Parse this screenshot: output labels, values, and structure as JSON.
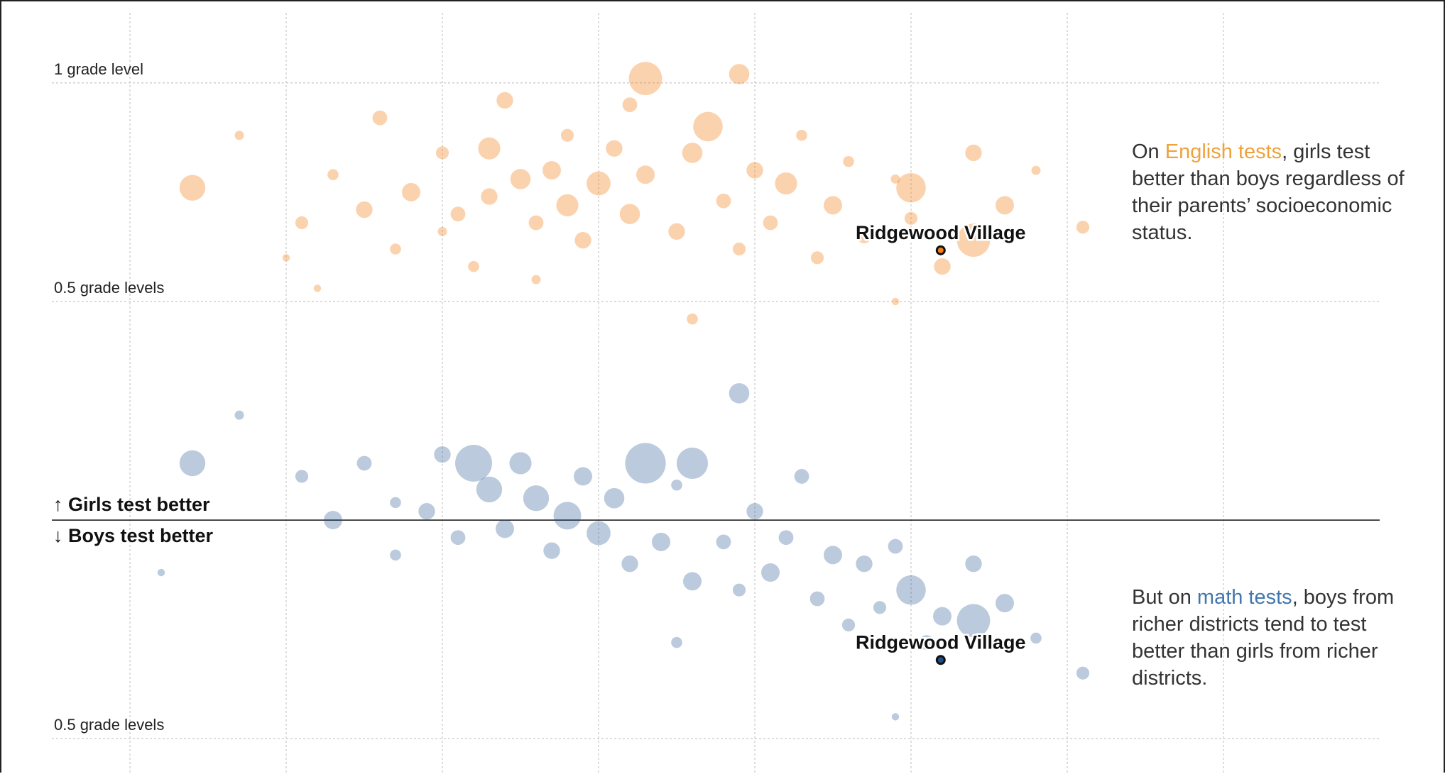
{
  "chart_data": {
    "type": "scatter",
    "xlim": [
      -3.5,
      5
    ],
    "xticks": [
      -3,
      -2,
      -1,
      0,
      1,
      2,
      3,
      4
    ],
    "ylim": [
      -0.55,
      1.05
    ],
    "yticks": [
      {
        "value": 1,
        "label": "1 grade level"
      },
      {
        "value": 0.5,
        "label": "0.5 grade levels"
      },
      {
        "value": -0.5,
        "label": "0.5 grade levels"
      }
    ],
    "baseline": 0,
    "grid": true,
    "annotations": [
      "↑ Girls test better",
      "↓ Boys test better"
    ],
    "series": [
      {
        "color": "#f47f16",
        "opacity": 0.35,
        "x": [
          -2.6,
          -2.3,
          -2.0,
          -1.9,
          -1.7,
          -1.5,
          -1.4,
          -1.3,
          -1.2,
          -1.0,
          -1.0,
          -0.9,
          -0.8,
          -0.7,
          -0.7,
          -0.6,
          -0.5,
          -0.4,
          -0.3,
          -0.2,
          -0.2,
          -0.1,
          0.0,
          0.1,
          0.2,
          0.2,
          0.3,
          0.3,
          0.5,
          0.6,
          0.7,
          0.8,
          0.9,
          0.9,
          1.0,
          1.1,
          1.2,
          1.3,
          1.4,
          1.5,
          1.6,
          1.7,
          1.9,
          2.0,
          2.0,
          2.2,
          2.4,
          2.4,
          2.6,
          2.8,
          3.1,
          0.6,
          -1.8,
          -0.4,
          1.9
        ],
        "values": [
          0.76,
          0.88,
          0.6,
          0.68,
          0.79,
          0.71,
          0.92,
          0.62,
          0.75,
          0.84,
          0.66,
          0.7,
          0.58,
          0.85,
          0.74,
          0.96,
          0.78,
          0.68,
          0.8,
          0.88,
          0.72,
          0.64,
          0.77,
          0.85,
          0.7,
          0.95,
          0.79,
          1.01,
          0.66,
          0.84,
          0.9,
          0.73,
          0.62,
          1.02,
          0.8,
          0.68,
          0.77,
          0.88,
          0.6,
          0.72,
          0.82,
          0.65,
          0.78,
          0.69,
          0.76,
          0.58,
          0.64,
          0.84,
          0.72,
          0.8,
          0.67,
          0.46,
          0.53,
          0.55,
          0.5
        ],
        "sizes": [
          14,
          5,
          4,
          7,
          6,
          9,
          8,
          6,
          10,
          7,
          5,
          8,
          6,
          12,
          9,
          9,
          11,
          8,
          10,
          7,
          12,
          9,
          13,
          9,
          11,
          8,
          10,
          18,
          9,
          11,
          16,
          8,
          7,
          11,
          9,
          8,
          12,
          6,
          7,
          10,
          6,
          8,
          5,
          7,
          16,
          9,
          18,
          9,
          10,
          5,
          7,
          6,
          4,
          5,
          4
        ]
      },
      {
        "color": "#1f4e8c",
        "opacity": 0.3,
        "x": [
          -2.6,
          -2.3,
          -1.9,
          -1.7,
          -1.5,
          -1.3,
          -1.3,
          -1.1,
          -1.0,
          -0.9,
          -0.8,
          -0.7,
          -0.6,
          -0.5,
          -0.4,
          -0.3,
          -0.2,
          -0.1,
          0.0,
          0.1,
          0.2,
          0.3,
          0.4,
          0.5,
          0.6,
          0.6,
          0.8,
          0.9,
          0.9,
          1.0,
          1.1,
          1.2,
          1.3,
          1.4,
          1.5,
          1.6,
          1.7,
          1.8,
          1.9,
          2.0,
          2.1,
          2.2,
          2.4,
          2.4,
          2.6,
          2.8,
          3.1,
          -2.8,
          0.5,
          1.9
        ],
        "values": [
          0.13,
          0.24,
          0.1,
          0.0,
          0.13,
          0.04,
          -0.08,
          0.02,
          0.15,
          -0.04,
          0.13,
          0.07,
          -0.02,
          0.13,
          0.05,
          -0.07,
          0.01,
          0.1,
          -0.03,
          0.05,
          -0.1,
          0.13,
          -0.05,
          0.08,
          -0.14,
          0.13,
          -0.05,
          -0.16,
          0.29,
          0.02,
          -0.12,
          -0.04,
          0.1,
          -0.18,
          -0.08,
          -0.24,
          -0.1,
          -0.2,
          -0.06,
          -0.16,
          -0.28,
          -0.22,
          -0.23,
          -0.1,
          -0.19,
          -0.27,
          -0.35,
          -0.12,
          -0.28,
          -0.45
        ],
        "sizes": [
          14,
          5,
          7,
          10,
          8,
          6,
          6,
          9,
          9,
          8,
          20,
          14,
          10,
          12,
          14,
          9,
          15,
          10,
          13,
          11,
          9,
          22,
          10,
          6,
          10,
          17,
          8,
          7,
          11,
          9,
          10,
          8,
          8,
          8,
          10,
          7,
          9,
          7,
          8,
          16,
          8,
          10,
          18,
          9,
          10,
          6,
          7,
          4,
          6,
          4
        ]
      }
    ],
    "highlights": [
      {
        "label": "Ridgewood Village",
        "x": 2.19,
        "y": 0.617
      },
      {
        "label": "Ridgewood Village",
        "x": 2.19,
        "y": -0.32
      }
    ],
    "notes": [
      {
        "parts": [
          "On ",
          "English tests",
          ", girls test better than boys regardless of their parents’ socioeconomic status."
        ],
        "highlight_color": "#f0a23a"
      },
      {
        "parts": [
          "But on ",
          "math tests",
          ", boys from richer districts tend to test better than girls from richer districts."
        ],
        "highlight_color": "#4277ad"
      }
    ]
  }
}
